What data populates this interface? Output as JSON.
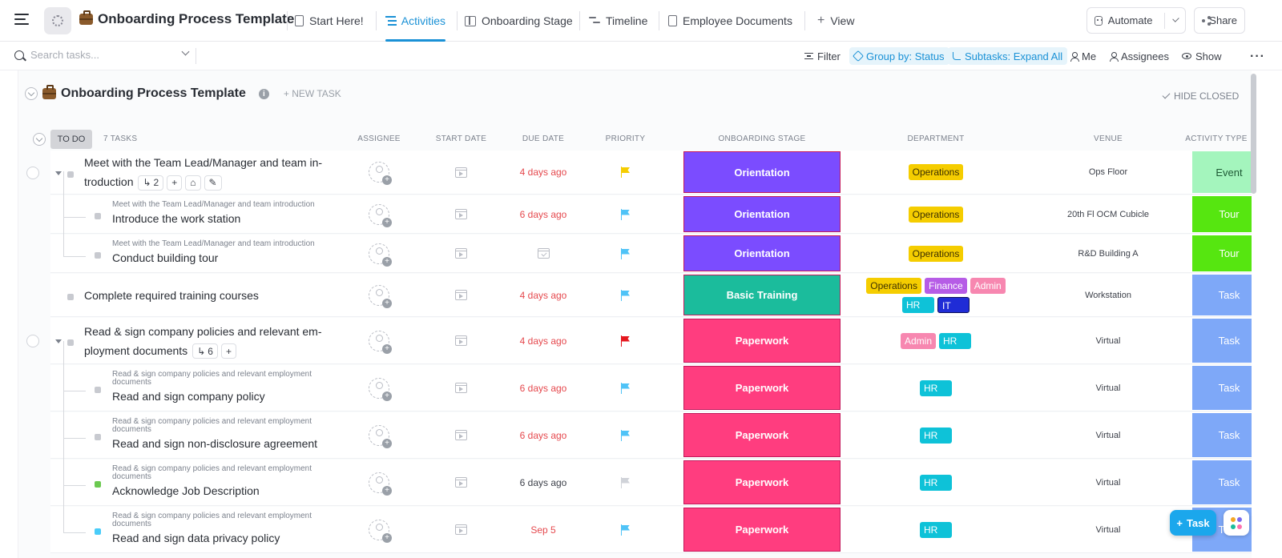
{
  "header": {
    "title": "Onboarding Process Template",
    "tabs": [
      {
        "label": "Start Here!",
        "active": false
      },
      {
        "label": "Activities",
        "active": true
      },
      {
        "label": "Onboarding Stage",
        "active": false
      },
      {
        "label": "Timeline",
        "active": false
      },
      {
        "label": "Employee Documents",
        "active": false
      }
    ],
    "add_view": "View",
    "automate": "Automate",
    "share": "Share"
  },
  "toolbar": {
    "search_placeholder": "Search tasks...",
    "filter": "Filter",
    "group_by": "Group by: Status",
    "subtasks": "Subtasks: Expand All",
    "me": "Me",
    "assignees": "Assignees",
    "show": "Show"
  },
  "list": {
    "title": "Onboarding Process Template",
    "new_task": "+ NEW TASK",
    "hide_closed": "HIDE CLOSED",
    "status": "TO DO",
    "task_count": "7 TASKS",
    "columns": {
      "assignee": "ASSIGNEE",
      "start_date": "START DATE",
      "due_date": "DUE DATE",
      "priority": "PRIORITY",
      "stage": "ONBOARDING STAGE",
      "department": "DEPARTMENT",
      "venue": "VENUE",
      "activity_type": "ACTIVITY TYPE"
    }
  },
  "tasks": [
    {
      "name_line1": "Meet with the Team Lead/Manager and team in-",
      "name_line2": "troduction",
      "subtask_count": "2",
      "due": "4 days ago",
      "stage": "Orientation",
      "departments": [
        "Operations"
      ],
      "venue": "Ops Floor",
      "activity": "Event"
    },
    {
      "parent": "Meet with the Team Lead/Manager and team introduction",
      "name": "Introduce the work station",
      "due": "6 days ago",
      "stage": "Orientation",
      "departments": [
        "Operations"
      ],
      "venue": "20th Fl OCM Cubicle",
      "activity": "Tour"
    },
    {
      "parent": "Meet with the Team Lead/Manager and team introduction",
      "name": "Conduct building tour",
      "due": "",
      "stage": "Orientation",
      "departments": [
        "Operations"
      ],
      "venue": "R&D Building A",
      "activity": "Tour"
    },
    {
      "name": "Complete required training courses",
      "due": "4 days ago",
      "stage": "Basic Training",
      "departments": [
        "Operations",
        "Finance",
        "Admin",
        "HR",
        "IT"
      ],
      "venue": "Workstation",
      "activity": "Task"
    },
    {
      "name_line1": "Read & sign company policies and relevant em-",
      "name_line2": "ployment documents",
      "subtask_count": "6",
      "due": "4 days ago",
      "stage": "Paperwork",
      "departments": [
        "Admin",
        "HR"
      ],
      "venue": "Virtual",
      "activity": "Task"
    },
    {
      "parent_line1": "Read & sign company policies and relevant employment",
      "parent_line2": "documents",
      "name": "Read and sign company policy",
      "due": "6 days ago",
      "stage": "Paperwork",
      "departments": [
        "HR"
      ],
      "venue": "Virtual",
      "activity": "Task"
    },
    {
      "parent_line1": "Read & sign company policies and relevant employment",
      "parent_line2": "documents",
      "name": "Read and sign non-disclosure agreement",
      "due": "6 days ago",
      "stage": "Paperwork",
      "departments": [
        "HR"
      ],
      "venue": "Virtual",
      "activity": "Task"
    },
    {
      "parent_line1": "Read & sign company policies and relevant employment",
      "parent_line2": "documents",
      "name": "Acknowledge Job Description",
      "due": "6 days ago",
      "stage": "Paperwork",
      "departments": [
        "HR"
      ],
      "venue": "Virtual",
      "activity": "Task"
    },
    {
      "parent_line1": "Read & sign company policies and relevant employment",
      "parent_line2": "documents",
      "name": "Read and sign data privacy policy",
      "due": "Sep 5",
      "stage": "Paperwork",
      "departments": [
        "HR"
      ],
      "venue": "Virtual",
      "activity": "Task"
    }
  ],
  "fab_label": "Task",
  "colors": {
    "accent": "#1a91d6",
    "orientation": "#7b4cff",
    "basic_training": "#1bbc9c",
    "paperwork": "#ff3d7f",
    "operations": "#f5cd00",
    "finance": "#b65ce6",
    "admin": "#f787b0",
    "hr": "#0ec2d8",
    "it": "#1f2cd6",
    "event": "#a4f5bd",
    "tour": "#56e610",
    "task": "#7ea8f8",
    "overdue": "#e5484d"
  }
}
